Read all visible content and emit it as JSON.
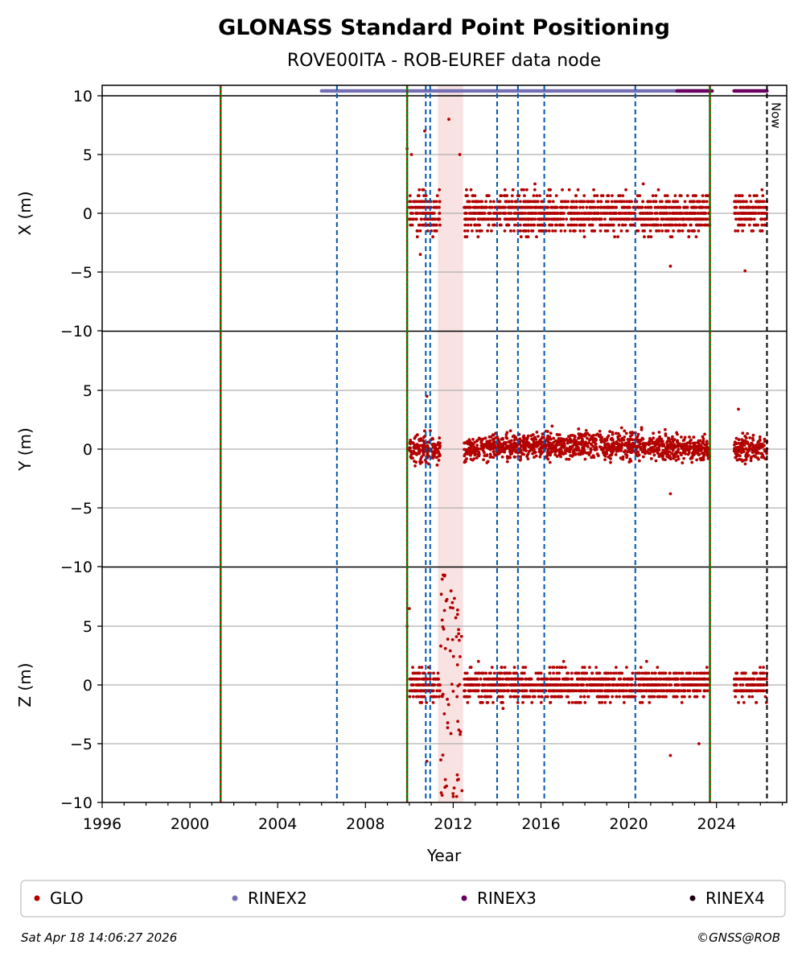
{
  "chart_data": {
    "type": "scatter",
    "title": "GLONASS Standard Point Positioning",
    "subtitle": "ROVE00ITA - ROB-EUREF data node",
    "xlabel": "Year",
    "xlim": [
      1996,
      2027.2
    ],
    "x_ticks": [
      "1996",
      "2000",
      "2004",
      "2008",
      "2012",
      "2016",
      "2020",
      "2024"
    ],
    "y_ticks": [
      "−10",
      "−5",
      "0",
      "5",
      "10"
    ],
    "grid": true,
    "panels": [
      {
        "ylabel": "X (m)",
        "ylim": [
          -10,
          10
        ]
      },
      {
        "ylabel": "Y (m)",
        "ylim": [
          -10,
          10
        ]
      },
      {
        "ylabel": "Z (m)",
        "ylim": [
          -10,
          10
        ]
      }
    ],
    "now_label": "Now",
    "now_x": 2026.3,
    "event_lines_green_red": [
      2001.4,
      2009.9,
      2023.7
    ],
    "event_lines_blue_dashed": [
      2006.7,
      2010.75,
      2010.95,
      2014.0,
      2014.95,
      2016.15,
      2020.3
    ],
    "shaded_spans": [
      [
        2011.3,
        2012.45
      ]
    ],
    "data_availability": [
      {
        "name": "RINEX2",
        "color": "#7570b3",
        "start": 2006.0,
        "end": 2023.8
      },
      {
        "name": "RINEX3",
        "color": "#6a0060",
        "start": 2022.2,
        "end": 2023.8
      },
      {
        "name": "RINEX3",
        "color": "#6a0060",
        "start": 2024.8,
        "end": 2026.3
      }
    ],
    "series": [
      {
        "name": "GLO",
        "color": "#b30000",
        "segments": [
          {
            "start": 2010.0,
            "end": 2011.4
          },
          {
            "start": 2012.5,
            "end": 2023.7
          },
          {
            "start": 2024.8,
            "end": 2026.3
          }
        ],
        "spread": {
          "X": {
            "center": 0.0,
            "band": 1.5,
            "min": -4.5,
            "max": 3.5
          },
          "Y": {
            "center": 0.0,
            "band": 1.0,
            "min": -2.5,
            "max": 3.0
          },
          "Z": {
            "center": 0.0,
            "band": 1.2,
            "min": -4.0,
            "max": 3.0
          }
        },
        "outliers": {
          "X": [
            [
              2009.9,
              5.5
            ],
            [
              2010.1,
              5.0
            ],
            [
              2010.7,
              7.0
            ],
            [
              2011.8,
              8.0
            ],
            [
              2012.3,
              5.0
            ],
            [
              2010.5,
              -3.5
            ],
            [
              2021.9,
              -4.5
            ],
            [
              2025.3,
              -4.9
            ]
          ],
          "Y": [
            [
              2010.8,
              4.5
            ],
            [
              2021.9,
              -3.8
            ],
            [
              2025.0,
              3.4
            ]
          ],
          "Z": [
            [
              2010.0,
              6.5
            ],
            [
              2009.9,
              5.0
            ],
            [
              2010.8,
              -6.5
            ],
            [
              2021.9,
              -6.0
            ],
            [
              2023.2,
              -5.0
            ],
            [
              2011.5,
              9.0
            ],
            [
              2011.9,
              8.0
            ],
            [
              2012.2,
              6.0
            ],
            [
              2012.0,
              -9.5
            ],
            [
              2012.4,
              -9.0
            ]
          ]
        }
      }
    ],
    "legend": {
      "placement": "bottom",
      "entries": [
        {
          "name": "GLO",
          "color": "#b30000"
        },
        {
          "name": "RINEX2",
          "color": "#7570b3"
        },
        {
          "name": "RINEX3",
          "color": "#6a0060"
        },
        {
          "name": "RINEX4",
          "color": "#1a0010"
        }
      ]
    }
  },
  "footer": {
    "timestamp": "Sat Apr 18 14:06:27 2026",
    "copyright": "©GNSS@ROB"
  }
}
